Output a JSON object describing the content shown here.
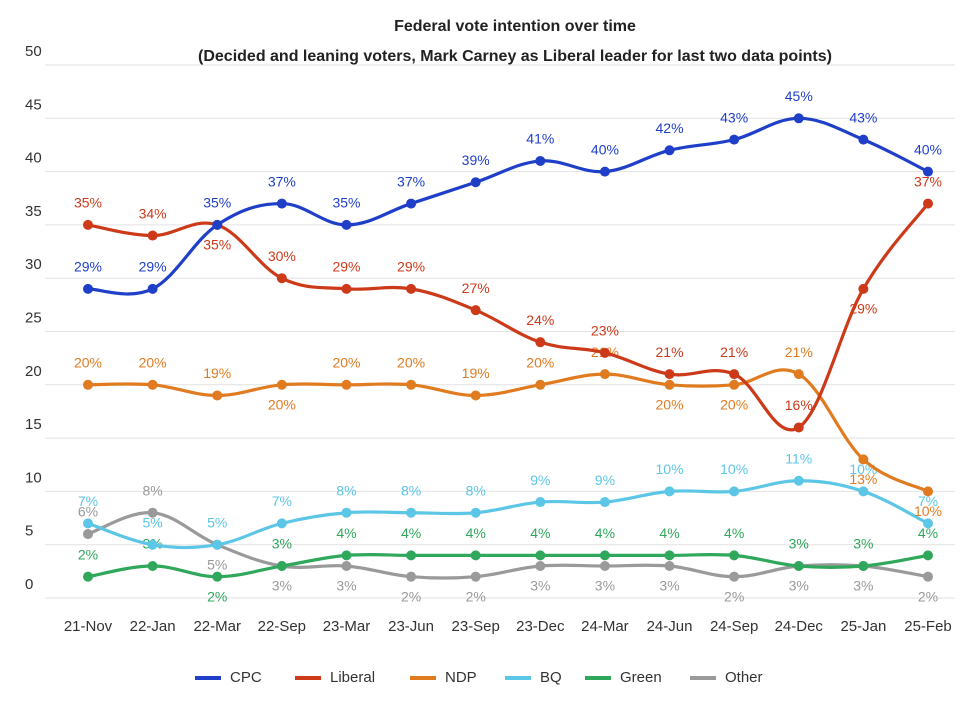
{
  "chart_data": {
    "type": "line",
    "title": "Federal vote intention over time",
    "subtitle": "(Decided and leaning voters, Mark Carney as Liberal leader for last two data points)",
    "categories": [
      "21-Nov",
      "22-Jan",
      "22-Mar",
      "22-Sep",
      "23-Mar",
      "23-Jun",
      "23-Sep",
      "23-Dec",
      "24-Mar",
      "24-Jun",
      "24-Sep",
      "24-Dec",
      "25-Jan",
      "25-Feb"
    ],
    "ylim": [
      0,
      50
    ],
    "yticks": [
      0,
      5,
      10,
      15,
      20,
      25,
      30,
      35,
      40,
      45,
      50
    ],
    "grid": true,
    "legend": "bottom",
    "series": [
      {
        "name": "CPC",
        "color": "#1f3fc9",
        "values": [
          29,
          29,
          35,
          37,
          35,
          37,
          39,
          41,
          40,
          42,
          43,
          45,
          43,
          40
        ],
        "value_labels": [
          "29%",
          "29%",
          "35%",
          "37%",
          "35%",
          "37%",
          "39%",
          "41%",
          "40%",
          "42%",
          "43%",
          "45%",
          "43%",
          "40%"
        ]
      },
      {
        "name": "Liberal",
        "color": "#cc3a1a",
        "values": [
          35,
          34,
          35,
          30,
          29,
          29,
          27,
          24,
          23,
          21,
          21,
          16,
          29,
          37
        ],
        "value_labels": [
          "35%",
          "34%",
          "35%",
          "30%",
          "29%",
          "29%",
          "27%",
          "24%",
          "23%",
          "21%",
          "21%",
          "16%",
          "29%",
          "37%"
        ]
      },
      {
        "name": "NDP",
        "color": "#e07b20",
        "values": [
          20,
          20,
          19,
          20,
          20,
          20,
          19,
          20,
          21,
          20,
          20,
          21,
          13,
          10
        ],
        "value_labels": [
          "20%",
          "20%",
          "19%",
          "20%",
          "20%",
          "20%",
          "19%",
          "20%",
          "21%",
          "20%",
          "20%",
          "21%",
          "13%",
          "10%"
        ]
      },
      {
        "name": "BQ",
        "color": "#5cc6e6",
        "values": [
          7,
          5,
          5,
          7,
          8,
          8,
          8,
          9,
          9,
          10,
          10,
          11,
          10,
          7
        ],
        "value_labels": [
          "7%",
          "5%",
          "5%",
          "7%",
          "8%",
          "8%",
          "8%",
          "9%",
          "9%",
          "10%",
          "10%",
          "11%",
          "10%",
          "7%"
        ]
      },
      {
        "name": "Green",
        "color": "#2fa85c",
        "values": [
          2,
          3,
          2,
          3,
          4,
          4,
          4,
          4,
          4,
          4,
          4,
          3,
          3,
          4
        ],
        "value_labels": [
          "2%",
          "3%",
          "2%",
          "3%",
          "4%",
          "4%",
          "4%",
          "4%",
          "4%",
          "4%",
          "4%",
          "3%",
          "3%",
          "4%"
        ]
      },
      {
        "name": "Other",
        "color": "#9a9a9a",
        "values": [
          6,
          8,
          5,
          3,
          3,
          2,
          2,
          3,
          3,
          3,
          2,
          3,
          3,
          2
        ],
        "value_labels": [
          "6%",
          "8%",
          "5%",
          "3%",
          "3%",
          "2%",
          "2%",
          "3%",
          "3%",
          "3%",
          "2%",
          "3%",
          "3%",
          "2%"
        ]
      }
    ]
  }
}
